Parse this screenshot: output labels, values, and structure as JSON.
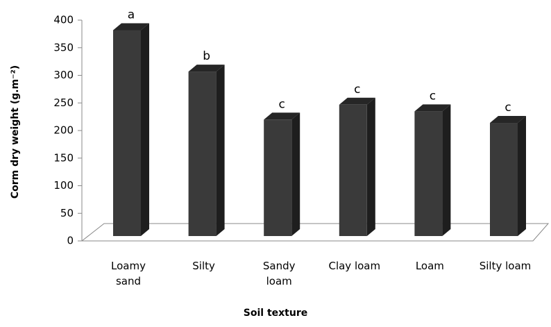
{
  "chart_data": {
    "type": "bar3d",
    "y_label": "Corm dry weight (g.m⁻²)",
    "x_label": "Soil texture",
    "categories": [
      "Loamy\nsand",
      "Silty",
      "Sandy\nloam",
      "Clay loam",
      "Loam",
      "Silty loam"
    ],
    "values": [
      373,
      298,
      211,
      238,
      226,
      205
    ],
    "annotations": [
      "a",
      "b",
      "c",
      "c",
      "c",
      "c"
    ],
    "color": "#3a3a3a",
    "ylim": [
      0,
      400
    ],
    "yticks": [
      0,
      50,
      100,
      150,
      200,
      250,
      300,
      350,
      400
    ]
  }
}
